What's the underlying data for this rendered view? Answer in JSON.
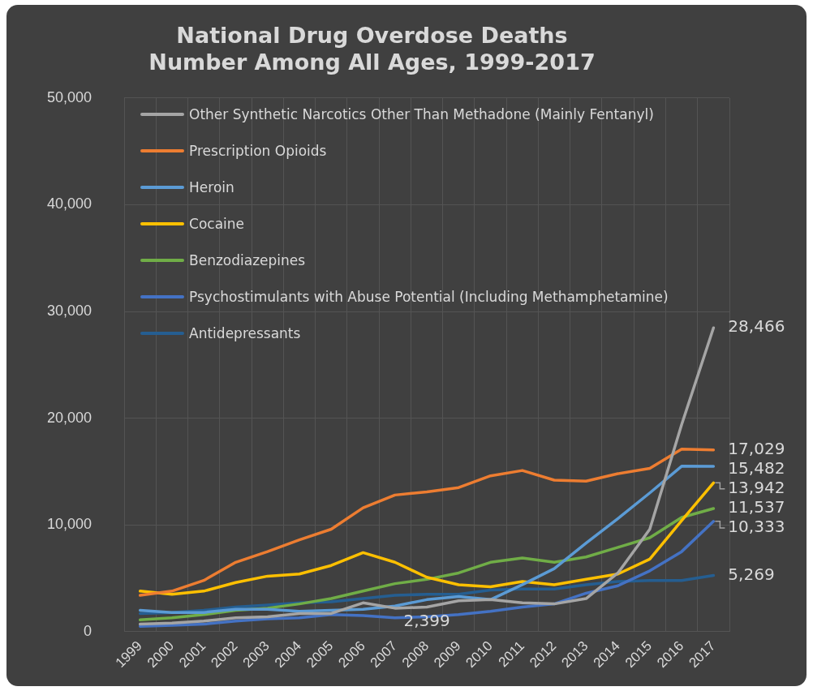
{
  "chart_data": {
    "type": "line",
    "title": "National Drug Overdose Deaths\nNumber Among All Ages, 1999-2017",
    "categories": [
      "1999",
      "2000",
      "2001",
      "2002",
      "2003",
      "2004",
      "2005",
      "2006",
      "2007",
      "2008",
      "2009",
      "2010",
      "2011",
      "2012",
      "2013",
      "2014",
      "2015",
      "2016",
      "2017"
    ],
    "series": [
      {
        "name": "Other Synthetic Narcotics Other Than Methadone (Mainly Fentanyl)",
        "color": "#a5a5a5",
        "values": [
          700,
          800,
          1000,
          1300,
          1400,
          1700,
          1700,
          2700,
          2200,
          2300,
          2900,
          3000,
          2700,
          2600,
          3100,
          5500,
          9600,
          19400,
          28466
        ],
        "value_labels": [
          null,
          null,
          null,
          null,
          null,
          null,
          null,
          null,
          null,
          null,
          null,
          null,
          null,
          null,
          null,
          null,
          null,
          null,
          "28,466"
        ]
      },
      {
        "name": "Prescription Opioids",
        "color": "#ed7d31",
        "values": [
          3400,
          3800,
          4800,
          6500,
          7500,
          8600,
          9600,
          11600,
          12800,
          13100,
          13500,
          14600,
          15100,
          14200,
          14100,
          14800,
          15300,
          17100,
          17029
        ],
        "value_labels": [
          null,
          null,
          null,
          null,
          null,
          null,
          null,
          null,
          null,
          null,
          null,
          null,
          null,
          null,
          null,
          null,
          null,
          null,
          "17,029"
        ]
      },
      {
        "name": "Heroin",
        "color": "#5b9bd5",
        "values": [
          2000,
          1800,
          1800,
          2100,
          2100,
          1900,
          2000,
          2100,
          2400,
          3000,
          3300,
          3000,
          4400,
          5900,
          8300,
          10600,
          13000,
          15500,
          15482
        ],
        "value_labels": [
          null,
          null,
          null,
          null,
          null,
          null,
          null,
          null,
          null,
          null,
          null,
          null,
          null,
          null,
          null,
          null,
          null,
          null,
          "15,482"
        ]
      },
      {
        "name": "Cocaine",
        "color": "#ffc000",
        "values": [
          3800,
          3500,
          3800,
          4600,
          5200,
          5400,
          6200,
          7400,
          6500,
          5100,
          4400,
          4200,
          4700,
          4400,
          4900,
          5400,
          6800,
          10400,
          13942
        ],
        "value_labels": [
          null,
          null,
          null,
          null,
          null,
          null,
          null,
          null,
          null,
          null,
          null,
          null,
          null,
          null,
          null,
          null,
          null,
          null,
          "13,942"
        ]
      },
      {
        "name": "Benzodiazepines",
        "color": "#70ad47",
        "values": [
          1100,
          1300,
          1600,
          2000,
          2200,
          2600,
          3100,
          3800,
          4500,
          4900,
          5500,
          6500,
          6900,
          6500,
          7000,
          7900,
          8800,
          10700,
          11537
        ],
        "value_labels": [
          null,
          null,
          null,
          null,
          null,
          null,
          null,
          null,
          null,
          null,
          null,
          null,
          null,
          null,
          null,
          null,
          null,
          null,
          "11,537"
        ]
      },
      {
        "name": "Psychostimulants with Abuse Potential (Including Methamphetamine)",
        "color": "#4472c4",
        "values": [
          500,
          600,
          700,
          1000,
          1200,
          1300,
          1600,
          1500,
          1300,
          1400,
          1600,
          1900,
          2300,
          2600,
          3600,
          4300,
          5700,
          7500,
          10333
        ],
        "value_labels": [
          null,
          null,
          null,
          null,
          null,
          null,
          null,
          null,
          null,
          null,
          null,
          null,
          null,
          null,
          null,
          null,
          null,
          null,
          "10,333"
        ]
      },
      {
        "name": "Antidepressants",
        "color": "#255e91",
        "values": [
          1700,
          1800,
          2000,
          2300,
          2500,
          2700,
          2800,
          3100,
          3400,
          3500,
          3500,
          3900,
          4000,
          4000,
          4400,
          4700,
          4800,
          4800,
          5269
        ],
        "value_labels": [
          null,
          null,
          null,
          null,
          null,
          null,
          null,
          null,
          null,
          null,
          null,
          null,
          null,
          null,
          null,
          null,
          null,
          null,
          "5,269"
        ]
      }
    ],
    "annotations": [
      {
        "text": "2,399",
        "x": "2008",
        "y": 2399
      }
    ],
    "ylim": [
      0,
      50000
    ],
    "yticks": [
      {
        "value": 0,
        "label": "0"
      },
      {
        "value": 10000,
        "label": "10,000"
      },
      {
        "value": 20000,
        "label": "20,000"
      },
      {
        "value": 30000,
        "label": "30,000"
      },
      {
        "value": 40000,
        "label": "40,000"
      },
      {
        "value": 50000,
        "label": "50,000"
      }
    ],
    "grid": true,
    "legend": "top left",
    "marker": "none",
    "line_style": "solid"
  }
}
